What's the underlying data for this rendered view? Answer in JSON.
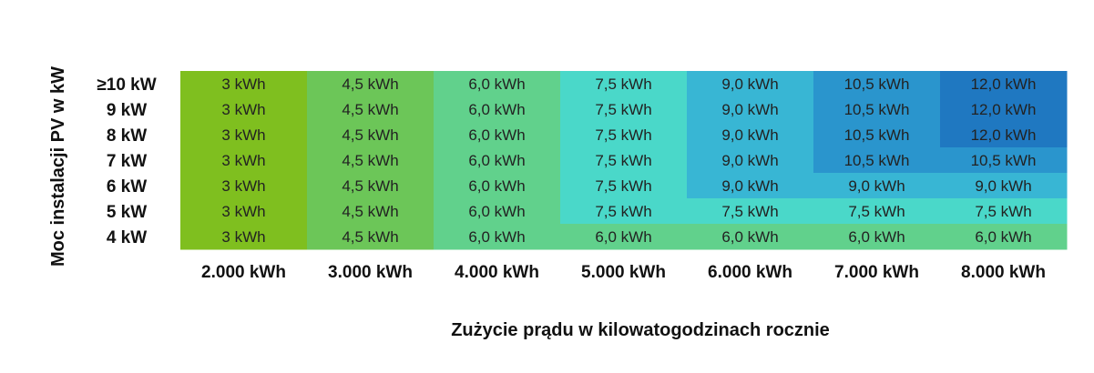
{
  "chart_data": {
    "type": "heatmap",
    "title": "",
    "xlabel": "Zużycie prądu w kilowatogodzinach rocznie",
    "ylabel": "Moc instalacji PV w kW",
    "x_categories": [
      "2.000 kWh",
      "3.000 kWh",
      "4.000 kWh",
      "5.000 kWh",
      "6.000 kWh",
      "7.000 kWh",
      "8.000 kWh"
    ],
    "y_categories": [
      "≥10 kW",
      "9 kW",
      "8 kW",
      "7 kW",
      "6 kW",
      "5 kW",
      "4 kW"
    ],
    "values": [
      [
        3,
        4.5,
        6.0,
        7.5,
        9.0,
        10.5,
        12.0
      ],
      [
        3,
        4.5,
        6.0,
        7.5,
        9.0,
        10.5,
        12.0
      ],
      [
        3,
        4.5,
        6.0,
        7.5,
        9.0,
        10.5,
        12.0
      ],
      [
        3,
        4.5,
        6.0,
        7.5,
        9.0,
        10.5,
        10.5
      ],
      [
        3,
        4.5,
        6.0,
        7.5,
        9.0,
        9.0,
        9.0
      ],
      [
        3,
        4.5,
        6.0,
        7.5,
        7.5,
        7.5,
        7.5
      ],
      [
        3,
        4.5,
        6.0,
        6.0,
        6.0,
        6.0,
        6.0
      ]
    ],
    "cell_labels": [
      [
        "3 kWh",
        "4,5 kWh",
        "6,0 kWh",
        "7,5 kWh",
        "9,0 kWh",
        "10,5 kWh",
        "12,0 kWh"
      ],
      [
        "3 kWh",
        "4,5 kWh",
        "6,0 kWh",
        "7,5 kWh",
        "9,0 kWh",
        "10,5 kWh",
        "12,0 kWh"
      ],
      [
        "3 kWh",
        "4,5 kWh",
        "6,0 kWh",
        "7,5 kWh",
        "9,0 kWh",
        "10,5 kWh",
        "12,0 kWh"
      ],
      [
        "3 kWh",
        "4,5 kWh",
        "6,0 kWh",
        "7,5 kWh",
        "9,0 kWh",
        "10,5 kWh",
        "10,5 kWh"
      ],
      [
        "3 kWh",
        "4,5 kWh",
        "6,0 kWh",
        "7,5 kWh",
        "9,0 kWh",
        "9,0 kWh",
        "9,0 kWh"
      ],
      [
        "3 kWh",
        "4,5 kWh",
        "6,0 kWh",
        "7,5 kWh",
        "7,5 kWh",
        "7,5 kWh",
        "7,5 kWh"
      ],
      [
        "3 kWh",
        "4,5 kWh",
        "6,0 kWh",
        "6,0 kWh",
        "6,0 kWh",
        "6,0 kWh",
        "6,0 kWh"
      ]
    ],
    "color_scale": {
      "3": "#7fbf1f",
      "4.5": "#6cc658",
      "6": "#61d18c",
      "7.5": "#4ad8c9",
      "9": "#38b6d4",
      "10.5": "#2a95cd",
      "12": "#1f78c1"
    },
    "grid": false,
    "legend": "none"
  }
}
